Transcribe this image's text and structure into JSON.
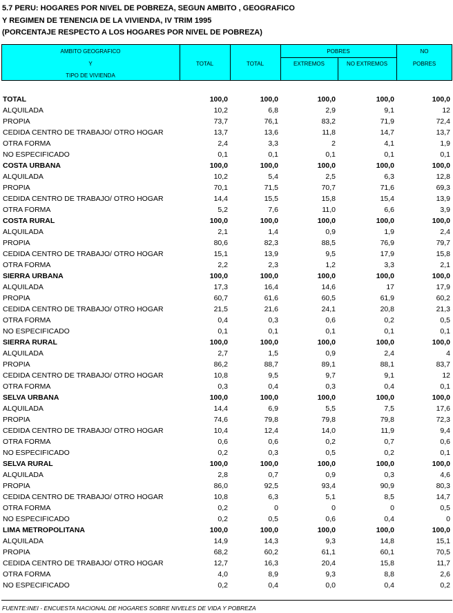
{
  "title": [
    "5.7 PERU: HOGARES POR NIVEL DE POBREZA, SEGUN AMBITO , GEOGRAFICO",
    "Y REGIMEN DE TENENCIA DE LA VIVIENDA, IV TRIM 1995",
    "(PORCENTAJE RESPECTO A LOS HOGARES POR NIVEL DE  POBREZA)"
  ],
  "header": {
    "ambito": [
      "AMBITO GEOGRAFICO",
      "Y",
      "TIPO DE VIVIENDA"
    ],
    "total1": "TOTAL",
    "total2": "TOTAL",
    "pobres": "POBRES",
    "extremos": "EXTREMOS",
    "no_extremos": "NO EXTREMOS",
    "no_pobres": [
      "NO",
      "POBRES"
    ]
  },
  "sections": [
    {
      "name": "TOTAL",
      "values": [
        "100,0",
        "100,0",
        "100,0",
        "100,0",
        "100,0"
      ],
      "rows": [
        [
          "ALQUILADA",
          "10,2",
          "6,8",
          "2,9",
          "9,1",
          "12"
        ],
        [
          "PROPIA",
          "73,7",
          "76,1",
          "83,2",
          "71,9",
          "72,4"
        ],
        [
          "CEDIDA CENTRO DE TRABAJO/ OTRO HOGAR",
          "13,7",
          "13,6",
          "11,8",
          "14,7",
          "13,7"
        ],
        [
          "OTRA FORMA",
          "2,4",
          "3,3",
          "2",
          "4,1",
          "1,9"
        ],
        [
          "NO ESPECIFICADO",
          "0,1",
          "0,1",
          "0,1",
          "0,1",
          "0,1"
        ]
      ]
    },
    {
      "name": "COSTA URBANA",
      "values": [
        "100,0",
        "100,0",
        "100,0",
        "100,0",
        "100,0"
      ],
      "rows": [
        [
          "ALQUILADA",
          "10,2",
          "5,4",
          "2,5",
          "6,3",
          "12,8"
        ],
        [
          "PROPIA",
          "70,1",
          "71,5",
          "70,7",
          "71,6",
          "69,3"
        ],
        [
          "CEDIDA CENTRO DE TRABAJO/ OTRO HOGAR",
          "14,4",
          "15,5",
          "15,8",
          "15,4",
          "13,9"
        ],
        [
          "OTRA FORMA",
          "5,2",
          "7,6",
          "11,0",
          "6,6",
          "3,9"
        ]
      ]
    },
    {
      "name": "COSTA RURAL",
      "values": [
        "100,0",
        "100,0",
        "100,0",
        "100,0",
        "100,0"
      ],
      "rows": [
        [
          "ALQUILADA",
          "2,1",
          "1,4",
          "0,9",
          "1,9",
          "2,4"
        ],
        [
          "PROPIA",
          "80,6",
          "82,3",
          "88,5",
          "76,9",
          "79,7"
        ],
        [
          "CEDIDA CENTRO DE TRABAJO/ OTRO HOGAR",
          "15,1",
          "13,9",
          "9,5",
          "17,9",
          "15,8"
        ],
        [
          "OTRA FORMA",
          "2,2",
          "2,3",
          "1,2",
          "3,3",
          "2,1"
        ]
      ]
    },
    {
      "name": "SIERRA URBANA",
      "values": [
        "100,0",
        "100,0",
        "100,0",
        "100,0",
        "100,0"
      ],
      "rows": [
        [
          "ALQUILADA",
          "17,3",
          "16,4",
          "14,6",
          "17",
          "17,9"
        ],
        [
          "PROPIA",
          "60,7",
          "61,6",
          "60,5",
          "61,9",
          "60,2"
        ],
        [
          "CEDIDA CENTRO DE TRABAJO/ OTRO HOGAR",
          "21,5",
          "21,6",
          "24,1",
          "20,8",
          "21,3"
        ],
        [
          "OTRA FORMA",
          "0,4",
          "0,3",
          "0,6",
          "0,2",
          "0,5"
        ],
        [
          "NO ESPECIFICADO",
          "0,1",
          "0,1",
          "0,1",
          "0,1",
          "0,1"
        ]
      ]
    },
    {
      "name": "SIERRA RURAL",
      "values": [
        "100,0",
        "100,0",
        "100,0",
        "100,0",
        "100,0"
      ],
      "rows": [
        [
          "ALQUILADA",
          "2,7",
          "1,5",
          "0,9",
          "2,4",
          "4"
        ],
        [
          "PROPIA",
          "86,2",
          "88,7",
          "89,1",
          "88,1",
          "83,7"
        ],
        [
          "CEDIDA CENTRO DE TRABAJO/ OTRO HOGAR",
          "10,8",
          "9,5",
          "9,7",
          "9,1",
          "12"
        ],
        [
          "OTRA FORMA",
          "0,3",
          "0,4",
          "0,3",
          "0,4",
          "0,1"
        ]
      ]
    },
    {
      "name": "SELVA URBANA",
      "values": [
        "100,0",
        "100,0",
        "100,0",
        "100,0",
        "100,0"
      ],
      "rows": [
        [
          "ALQUILADA",
          "14,4",
          "6,9",
          "5,5",
          "7,5",
          "17,6"
        ],
        [
          "PROPIA",
          "74,6",
          "79,8",
          "79,8",
          "79,8",
          "72,3"
        ],
        [
          "CEDIDA CENTRO DE TRABAJO/ OTRO HOGAR",
          "10,4",
          "12,4",
          "14,0",
          "11,9",
          "9,4"
        ],
        [
          "OTRA FORMA",
          "0,6",
          "0,6",
          "0,2",
          "0,7",
          "0,6"
        ],
        [
          "NO ESPECIFICADO",
          "0,2",
          "0,3",
          "0,5",
          "0,2",
          "0,1"
        ]
      ]
    },
    {
      "name": "SELVA RURAL",
      "values": [
        "100,0",
        "100,0",
        "100,0",
        "100,0",
        "100,0"
      ],
      "rows": [
        [
          "ALQUILADA",
          "2,8",
          "0,7",
          "0,9",
          "0,3",
          "4,6"
        ],
        [
          "PROPIA",
          "86,0",
          "92,5",
          "93,4",
          "90,9",
          "80,3"
        ],
        [
          "CEDIDA CENTRO DE TRABAJO/ OTRO HOGAR",
          "10,8",
          "6,3",
          "5,1",
          "8,5",
          "14,7"
        ],
        [
          "OTRA FORMA",
          "0,2",
          "0",
          "0",
          "0",
          "0,5"
        ],
        [
          "NO ESPECIFICADO",
          "0,2",
          "0,5",
          "0,6",
          "0,4",
          "0"
        ]
      ]
    },
    {
      "name": "LIMA METROPOLITANA",
      "values": [
        "100,0",
        "100,0",
        "100,0",
        "100,0",
        "100,0"
      ],
      "rows": [
        [
          "ALQUILADA",
          "14,9",
          "14,3",
          "9,3",
          "14,8",
          "15,1"
        ],
        [
          "PROPIA",
          "68,2",
          "60,2",
          "61,1",
          "60,1",
          "70,5"
        ],
        [
          "CEDIDA CENTRO DE TRABAJO/ OTRO HOGAR",
          "12,7",
          "16,3",
          "20,4",
          "15,8",
          "11,7"
        ],
        [
          "OTRA FORMA",
          "4,0",
          "8,9",
          "9,3",
          "8,8",
          "2,6"
        ],
        [
          "NO ESPECIFICADO",
          "0,2",
          "0,4",
          "0,0",
          "0,4",
          "0,2"
        ]
      ]
    }
  ],
  "footer": "FUENTE:INEI - ENCUESTA NACIONAL DE HOGARES SOBRE NIVELES DE VIDA Y POBREZA"
}
